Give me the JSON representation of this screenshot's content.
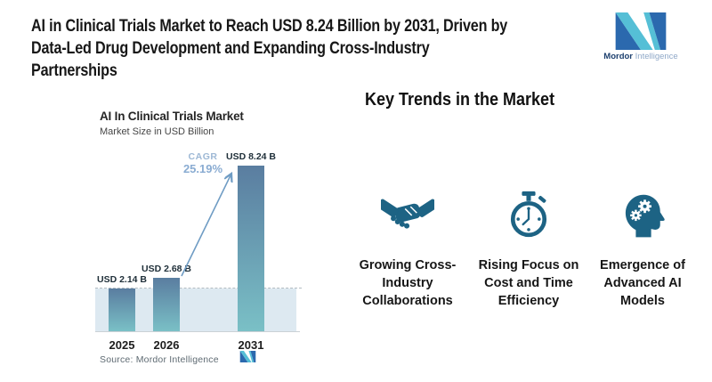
{
  "header": {
    "title_lines": [
      "AI in Clinical Trials Market to Reach USD 8.24 Billion by 2031, Driven by",
      "Data-Led Drug Development and Expanding Cross-Industry",
      "Partnerships"
    ],
    "brand": {
      "name_bold": "Mordor",
      "name_light": "Intelligence"
    }
  },
  "chart_data": {
    "type": "bar",
    "title": "AI In Clinical Trials Market",
    "subtitle": "Market Size in USD Billion",
    "categories": [
      "2025",
      "2026",
      "2031"
    ],
    "values": [
      2.14,
      2.68,
      8.24
    ],
    "bar_labels": [
      "USD 2.14 B",
      "USD 2.68 B",
      "USD 8.24 B"
    ],
    "ylabel": "Market Size in USD Billion",
    "ylim": [
      0,
      8.24
    ],
    "grid": false,
    "cagr": {
      "label": "CAGR",
      "value": "25.19%"
    },
    "annotations": [
      "dashed reference line at 2025 level",
      "growth arrow from 2026 bar to 2031 bar"
    ],
    "source": "Source: Mordor Intelligence"
  },
  "trends": {
    "heading": "Key Trends in the Market",
    "items": [
      {
        "icon": "handshake-icon",
        "label": "Growing Cross-Industry Collaborations"
      },
      {
        "icon": "stopwatch-icon",
        "label": "Rising Focus on Cost and Time Efficiency"
      },
      {
        "icon": "head-gears-icon",
        "label": "Emergence of Advanced AI Models"
      }
    ]
  },
  "colors": {
    "icon": "#1d6384",
    "bar_top": "#5a7da0",
    "bar_bottom": "#7ac0c6",
    "band": "#dde9f1",
    "dashed": "#b3bcc2",
    "cagr_text": "#9db8d5",
    "arrow": "#6f9cc4",
    "logo_teal": "#55bfd6",
    "logo_blue": "#2b69ae",
    "brand_dark": "#1c3f6e",
    "brand_light": "#8fa8c8"
  }
}
